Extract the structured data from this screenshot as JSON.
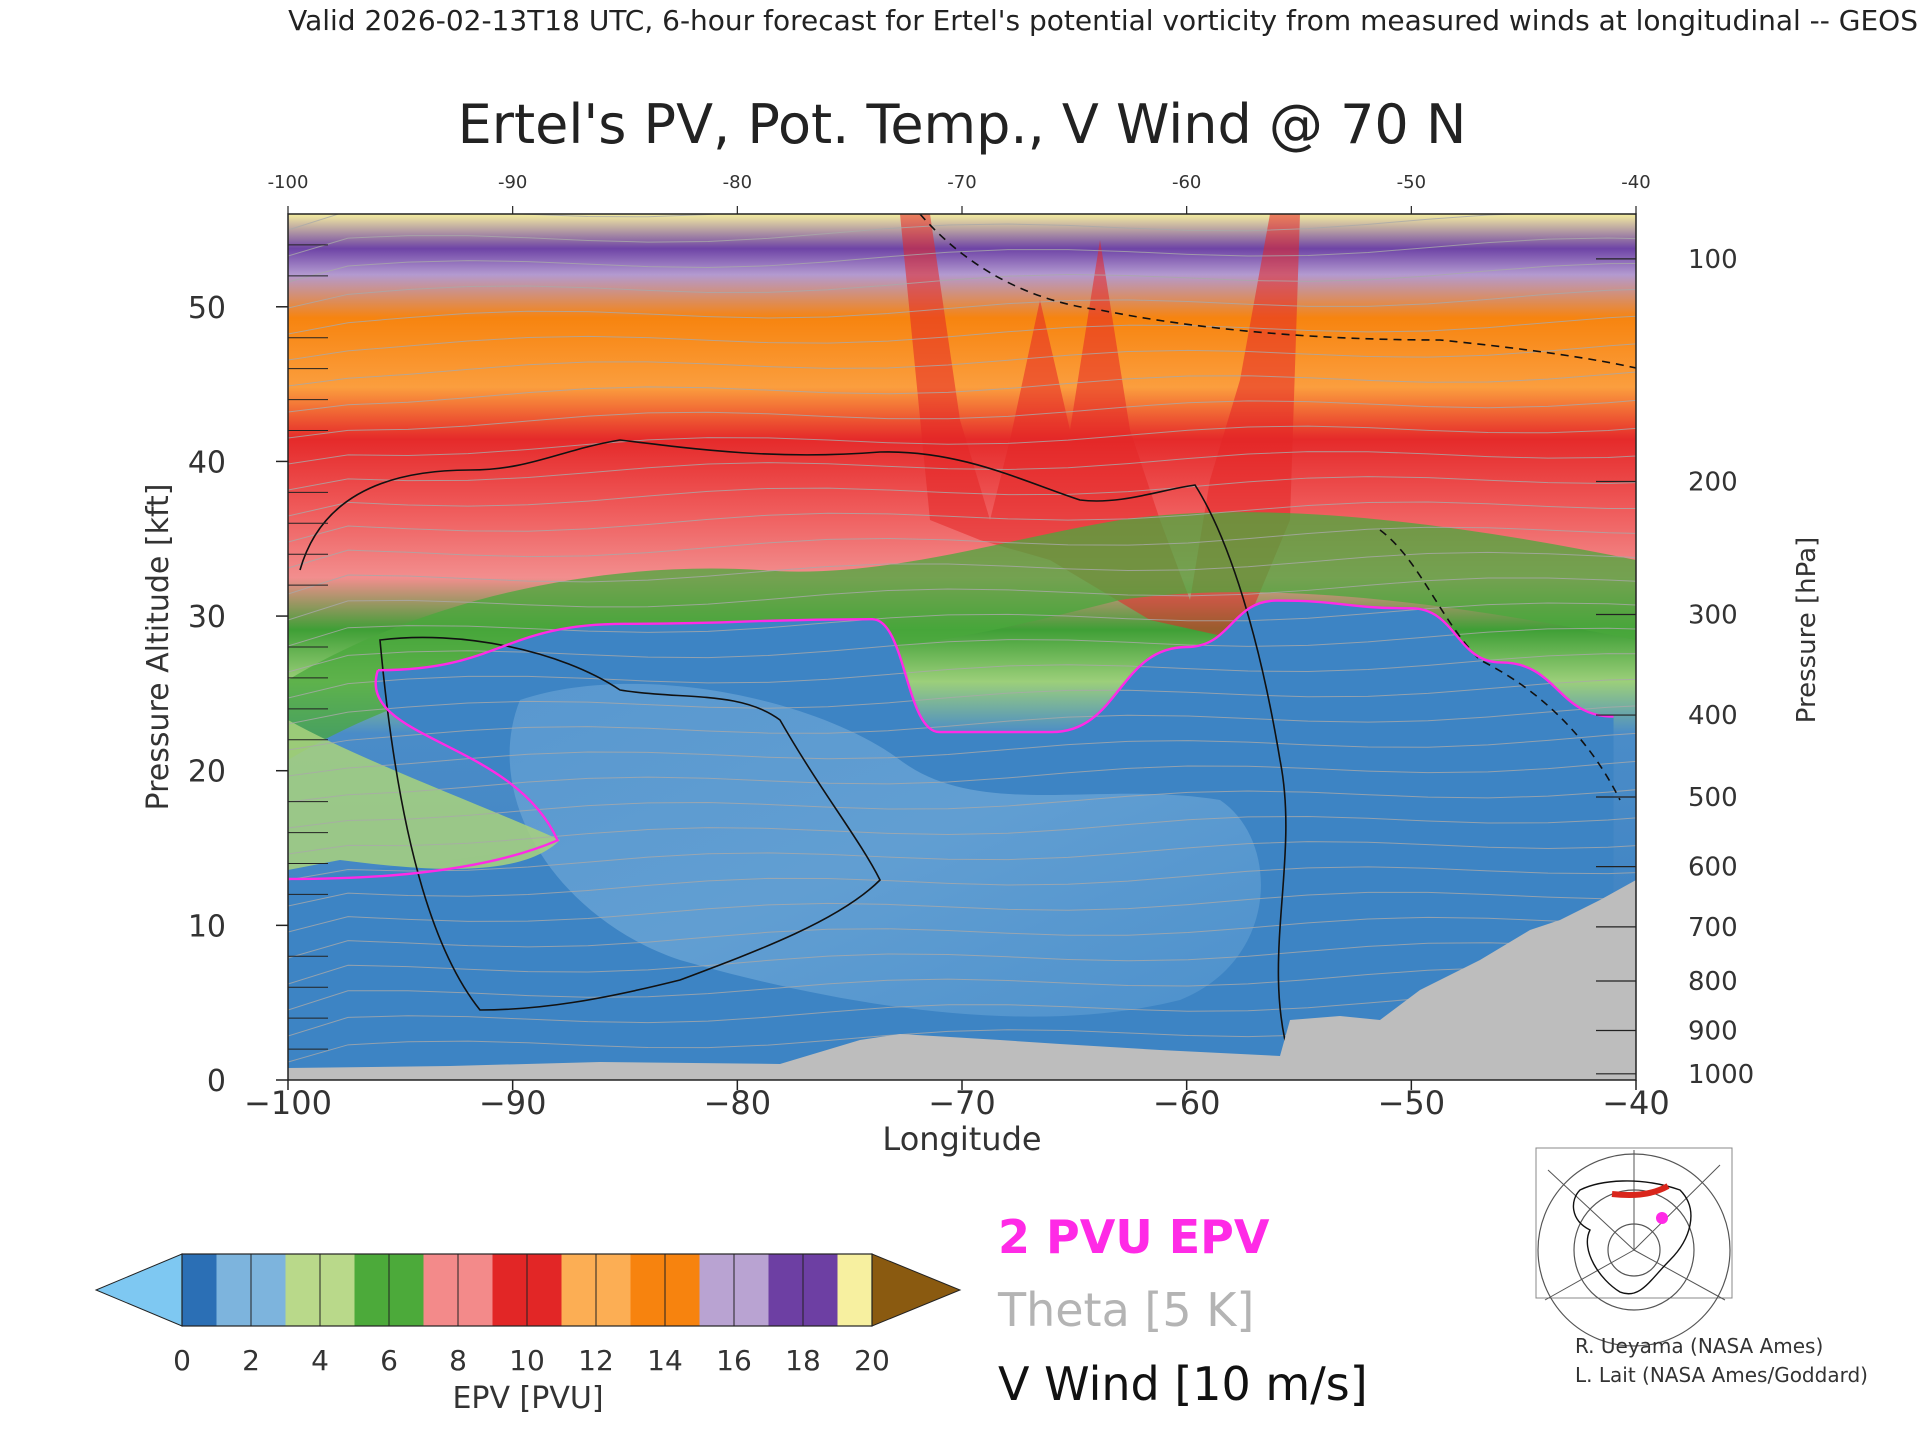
{
  "header": "Valid 2026-02-13T18 UTC, 6-hour forecast for Ertel's potential vorticity from measured winds at longitudinal -- GEOS",
  "chart_data": {
    "type": "heatmap",
    "title": "Ertel's PV, Pot. Temp., V Wind @ 70 N",
    "xlabel": "Longitude",
    "ylabel": "Pressure Altitude [kft]",
    "y2label": "Pressure [hPa]",
    "xlim": [
      -100,
      -40
    ],
    "ylim": [
      0,
      56
    ],
    "xticks": [
      "−100",
      "−90",
      "−80",
      "−70",
      "−60",
      "−50",
      "−40"
    ],
    "xticks_top": [
      "-100",
      "-90",
      "-80",
      "-70",
      "-60",
      "-50",
      "-40"
    ],
    "xtick_values": [
      -100,
      -90,
      -80,
      -70,
      -60,
      -50,
      -40
    ],
    "yticks": [
      0,
      10,
      20,
      30,
      40,
      50
    ],
    "pressure_ticks": [
      {
        "label": "100",
        "kft": 53.1
      },
      {
        "label": "200",
        "kft": 38.7
      },
      {
        "label": "300",
        "kft": 30.1
      },
      {
        "label": "400",
        "kft": 23.6
      },
      {
        "label": "500",
        "kft": 18.3
      },
      {
        "label": "600",
        "kft": 13.8
      },
      {
        "label": "700",
        "kft": 9.9
      },
      {
        "label": "800",
        "kft": 6.4
      },
      {
        "label": "900",
        "kft": 3.2
      },
      {
        "label": "1000",
        "kft": 0.4
      }
    ],
    "tropopause_2pvu_kft": [
      {
        "lon": -96,
        "alt": 26.5
      },
      {
        "lon": -85,
        "alt": 29.5
      },
      {
        "lon": -74,
        "alt": 29.8
      },
      {
        "lon": -71,
        "alt": 22.5
      },
      {
        "lon": -66,
        "alt": 22.5
      },
      {
        "lon": -60,
        "alt": 28
      },
      {
        "lon": -56,
        "alt": 31
      },
      {
        "lon": -50,
        "alt": 30.5
      },
      {
        "lon": -46,
        "alt": 27
      },
      {
        "lon": -41,
        "alt": 23.5
      }
    ],
    "colorbar": {
      "label": "EPV [PVU]",
      "ticks": [
        "0",
        "2",
        "4",
        "6",
        "8",
        "10",
        "12",
        "14",
        "16",
        "18",
        "20"
      ],
      "colors": [
        "#2b6fb5",
        "#7db4dd",
        "#b9d98a",
        "#4caa3a",
        "#f38a8a",
        "#e22626",
        "#fcae54",
        "#f7830e",
        "#b9a3d2",
        "#6d3fa3",
        "#f7f0a0"
      ],
      "under_color": "#7ec8f2",
      "over_color": "#8a5a10"
    },
    "legend": [
      {
        "label": "2 PVU EPV",
        "color": "#ff2ae6"
      },
      {
        "label": "Theta [5 K]",
        "color": "#b4b4b4"
      },
      {
        "label": "V Wind [10 m/s]",
        "color": "#111111"
      }
    ]
  },
  "credits": [
    "R. Ueyama (NASA Ames)",
    "L. Lait (NASA Ames/Goddard)"
  ]
}
